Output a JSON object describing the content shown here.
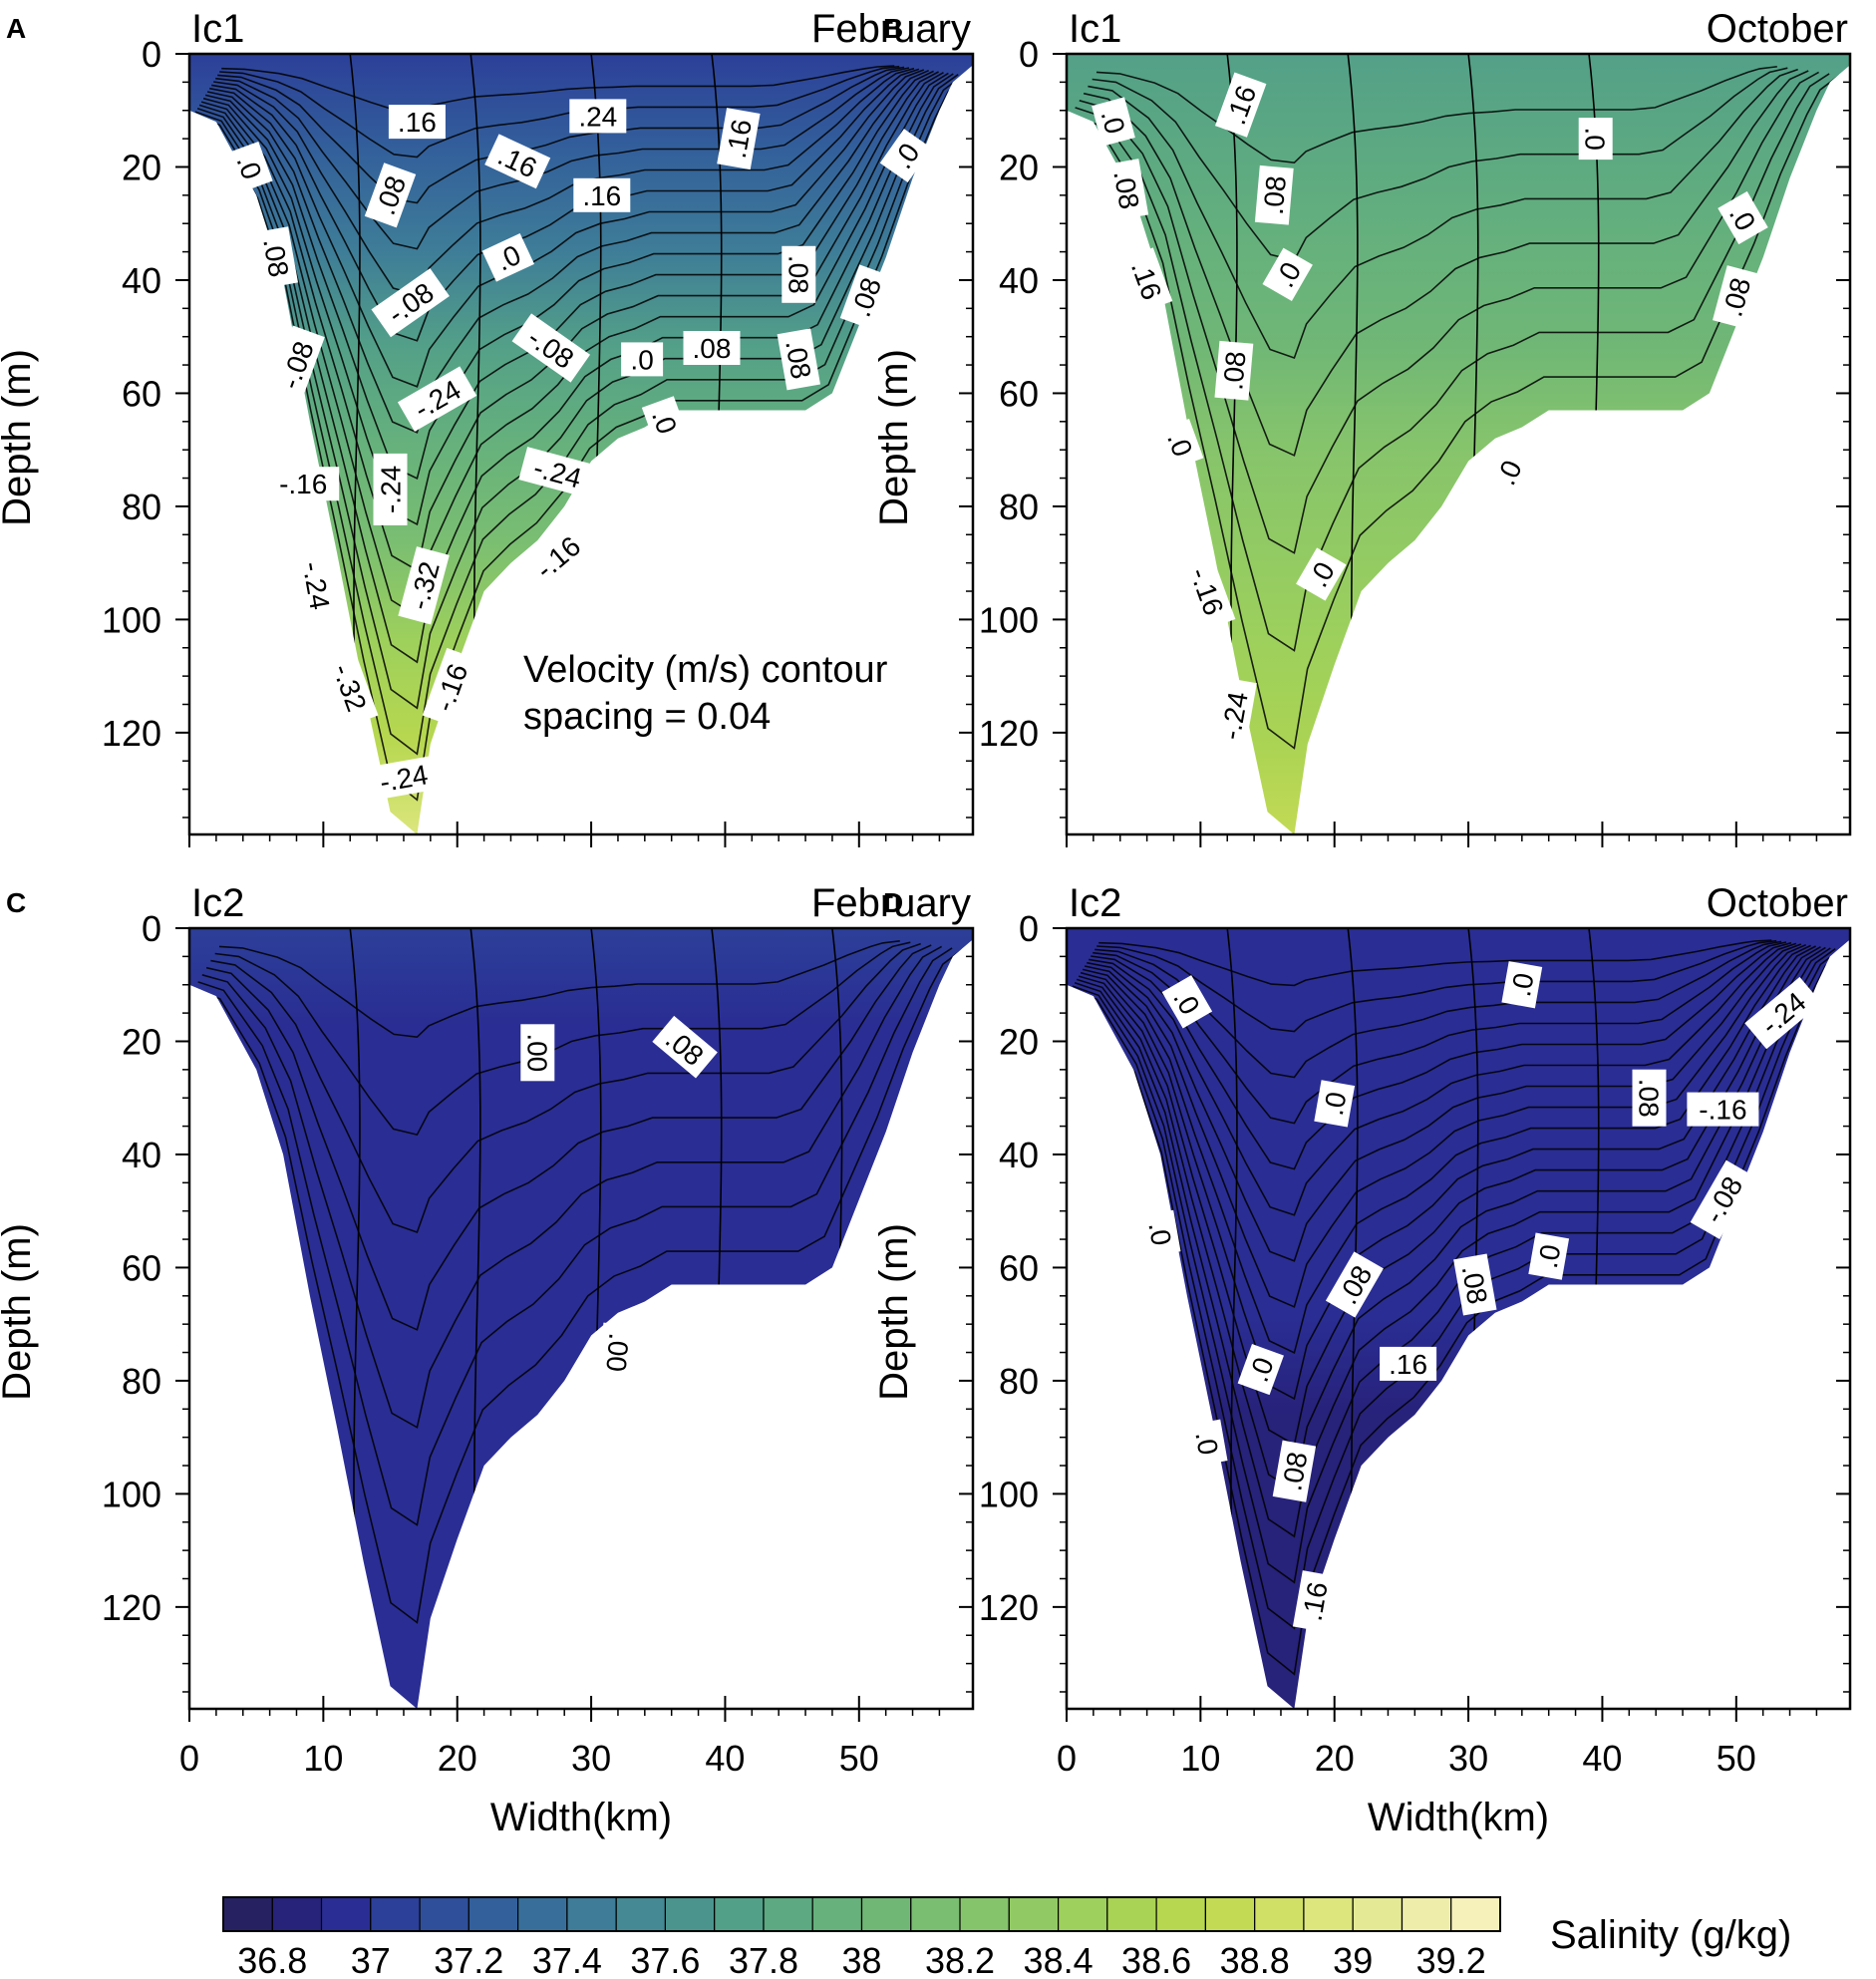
{
  "chart_data": {
    "type": "contour",
    "shared": {
      "xlabel": "Width(km)",
      "ylabel": "Depth (m)",
      "xlim": [
        0,
        58.5
      ],
      "ylim": [
        0,
        138
      ],
      "xticks": [
        0,
        10,
        20,
        30,
        40,
        50
      ],
      "yticks": [
        0,
        20,
        40,
        60,
        80,
        100,
        120
      ],
      "bathymetry": {
        "x": [
          0.0,
          2.0,
          5.0,
          7.0,
          9.0,
          11.0,
          13.0,
          15.0,
          17.0,
          18.0,
          20.0,
          22.0,
          24.0,
          26.0,
          28.0,
          30.0,
          32.0,
          34.0,
          36.0,
          38.0,
          40.0,
          42.0,
          44.0,
          46.0,
          48.0,
          50.0,
          52.0,
          54.0,
          56.0,
          57.0,
          58.5
        ],
        "depth": [
          10.0,
          12.0,
          25.0,
          40.0,
          65.0,
          88.0,
          112.0,
          134.0,
          138.0,
          122.0,
          108.0,
          95.0,
          90.0,
          86.0,
          80.0,
          72.0,
          68.0,
          66.0,
          63.0,
          63.0,
          63.0,
          63.0,
          63.0,
          63.0,
          60.0,
          48.0,
          36.0,
          22.0,
          10.0,
          5.0,
          2.0
        ]
      }
    },
    "panels": [
      {
        "letter": "A",
        "section": "Ic1",
        "month": "February",
        "annotation": [
          "Velocity (m/s) contour",
          "spacing = 0.04"
        ],
        "salinity_surface": 37.0,
        "salinity_bottom": 38.9,
        "contour_labels": [
          {
            "text": ".16",
            "x": 17,
            "z": 12,
            "rot": 0
          },
          {
            "text": ".24",
            "x": 30.5,
            "z": 11,
            "rot": 0
          },
          {
            "text": ".16",
            "x": 41,
            "z": 15,
            "rot": -80
          },
          {
            "text": ".0",
            "x": 53.5,
            "z": 18,
            "rot": -55
          },
          {
            "text": ".0",
            "x": 4.5,
            "z": 20,
            "rot": 70
          },
          {
            "text": ".16",
            "x": 24.5,
            "z": 19,
            "rot": 25
          },
          {
            "text": ".08",
            "x": 15,
            "z": 25,
            "rot": -70
          },
          {
            "text": ".16",
            "x": 30.8,
            "z": 25,
            "rot": 0
          },
          {
            "text": ".08",
            "x": 6.5,
            "z": 36,
            "rot": 80
          },
          {
            "text": ".0",
            "x": 23.8,
            "z": 36,
            "rot": -25
          },
          {
            "text": ".08",
            "x": 45.5,
            "z": 39,
            "rot": 90
          },
          {
            "text": ".08",
            "x": 50.5,
            "z": 43,
            "rot": -70
          },
          {
            "text": "-.08",
            "x": 16.5,
            "z": 44,
            "rot": -35
          },
          {
            "text": "-.08",
            "x": 8,
            "z": 55,
            "rot": -70
          },
          {
            "text": "-.08",
            "x": 27,
            "z": 52,
            "rot": 35
          },
          {
            "text": ".0",
            "x": 33.8,
            "z": 54,
            "rot": 0
          },
          {
            "text": ".08",
            "x": 39,
            "z": 52,
            "rot": 0
          },
          {
            "text": ".08",
            "x": 45.5,
            "z": 54,
            "rot": 80
          },
          {
            "text": "-.24",
            "x": 18.5,
            "z": 61,
            "rot": -30
          },
          {
            "text": ".0",
            "x": 35.5,
            "z": 65,
            "rot": 70
          },
          {
            "text": "-.16",
            "x": 8.5,
            "z": 76,
            "rot": 0
          },
          {
            "text": "-.24",
            "x": 15,
            "z": 77,
            "rot": -90
          },
          {
            "text": "-.24",
            "x": 27.5,
            "z": 74,
            "rot": 15
          },
          {
            "text": "-.16",
            "x": 27.5,
            "z": 89,
            "rot": -40
          },
          {
            "text": "-.32",
            "x": 17.5,
            "z": 94,
            "rot": -75
          },
          {
            "text": "-.24",
            "x": 9.5,
            "z": 94,
            "rot": 80
          },
          {
            "text": "-.16",
            "x": 19.5,
            "z": 112,
            "rot": -70
          },
          {
            "text": "-.32",
            "x": 12,
            "z": 112,
            "rot": 70
          },
          {
            "text": "-.24",
            "x": 16,
            "z": 128,
            "rot": -10
          }
        ]
      },
      {
        "letter": "B",
        "section": "Ic1",
        "month": "October",
        "annotation": [],
        "salinity_surface": 37.7,
        "salinity_bottom": 38.7,
        "contour_labels": [
          {
            "text": ".0",
            "x": 3.5,
            "z": 12,
            "rot": 75
          },
          {
            "text": ".16",
            "x": 13,
            "z": 9,
            "rot": -70
          },
          {
            "text": ".0",
            "x": 39.5,
            "z": 15,
            "rot": 90
          },
          {
            "text": ".08",
            "x": 4.5,
            "z": 24,
            "rot": 80
          },
          {
            "text": ".08",
            "x": 15.5,
            "z": 25,
            "rot": -85
          },
          {
            "text": ".0",
            "x": 50.5,
            "z": 29,
            "rot": 60
          },
          {
            "text": ".16",
            "x": 6,
            "z": 40,
            "rot": 70
          },
          {
            "text": ".0",
            "x": 16.5,
            "z": 39,
            "rot": -60
          },
          {
            "text": ".08",
            "x": 50,
            "z": 43,
            "rot": -75
          },
          {
            "text": ".08",
            "x": 12.5,
            "z": 56,
            "rot": -85
          },
          {
            "text": ".0",
            "x": 8.5,
            "z": 69,
            "rot": 70
          },
          {
            "text": ".0",
            "x": 33,
            "z": 74,
            "rot": -65
          },
          {
            "text": "-.16",
            "x": 10.5,
            "z": 95,
            "rot": 70
          },
          {
            "text": ".0",
            "x": 19,
            "z": 92,
            "rot": -60
          },
          {
            "text": "-.24",
            "x": 12.5,
            "z": 117,
            "rot": -80
          }
        ]
      },
      {
        "letter": "C",
        "section": "Ic2",
        "month": "February",
        "annotation": [],
        "salinity_surface": 37.0,
        "salinity_bottom": 36.9,
        "contour_labels": [
          {
            "text": ".00",
            "x": 26,
            "z": 22,
            "rot": 90
          },
          {
            "text": ".08",
            "x": 37,
            "z": 21,
            "rot": 40
          },
          {
            "text": ".00",
            "x": 32,
            "z": 75,
            "rot": 95
          }
        ]
      },
      {
        "letter": "D",
        "section": "Ic2",
        "month": "October",
        "annotation": [],
        "salinity_surface": 36.95,
        "salinity_bottom": 36.85,
        "contour_labels": [
          {
            "text": ".0",
            "x": 9,
            "z": 13,
            "rot": 60
          },
          {
            "text": ".0",
            "x": 34,
            "z": 10,
            "rot": -80
          },
          {
            "text": "-.24",
            "x": 53.5,
            "z": 15,
            "rot": -40
          },
          {
            "text": ".0",
            "x": 20,
            "z": 31,
            "rot": -80
          },
          {
            "text": ".08",
            "x": 43.5,
            "z": 30,
            "rot": 90
          },
          {
            "text": "-.16",
            "x": 49,
            "z": 32,
            "rot": 0
          },
          {
            "text": "-.08",
            "x": 49,
            "z": 48,
            "rot": -60
          },
          {
            "text": ".0",
            "x": 7,
            "z": 54,
            "rot": 80
          },
          {
            "text": ".0",
            "x": 36,
            "z": 58,
            "rot": -80
          },
          {
            "text": ".08",
            "x": 21.5,
            "z": 63,
            "rot": -60
          },
          {
            "text": ".08",
            "x": 30.5,
            "z": 63,
            "rot": 80
          },
          {
            "text": ".0",
            "x": 14.5,
            "z": 78,
            "rot": -70
          },
          {
            "text": ".16",
            "x": 25.5,
            "z": 77,
            "rot": 0
          },
          {
            "text": ".0",
            "x": 10.5,
            "z": 91,
            "rot": 80
          },
          {
            "text": ".08",
            "x": 17,
            "z": 96,
            "rot": -80
          },
          {
            "text": ".16",
            "x": 18.5,
            "z": 119,
            "rot": -80
          }
        ]
      }
    ],
    "colorbar": {
      "label": "Salinity (g/kg)",
      "levels": [
        36.7,
        36.8,
        36.9,
        37.0,
        37.1,
        37.2,
        37.3,
        37.4,
        37.5,
        37.6,
        37.7,
        37.8,
        37.9,
        38.0,
        38.1,
        38.2,
        38.3,
        38.4,
        38.5,
        38.6,
        38.7,
        38.8,
        38.9,
        39.0,
        39.1,
        39.2,
        39.3
      ],
      "tick_labels": [
        "36.8",
        "37",
        "37.2",
        "37.4",
        "37.6",
        "37.8",
        "38",
        "38.2",
        "38.4",
        "38.6",
        "38.8",
        "39",
        "39.2"
      ],
      "colors": [
        "#262262",
        "#27227a",
        "#2a2d93",
        "#2c3f99",
        "#2f4f9a",
        "#33609b",
        "#386f9a",
        "#3e7c98",
        "#448993",
        "#4b948e",
        "#53a088",
        "#5ca982",
        "#66b17c",
        "#70b776",
        "#7abe72",
        "#86c46c",
        "#91ca64",
        "#9dd05c",
        "#a9d354",
        "#b6d74f",
        "#c3da54",
        "#d0df66",
        "#dce67d",
        "#e4e996",
        "#eeedaa",
        "#f6f0ba"
      ]
    }
  }
}
